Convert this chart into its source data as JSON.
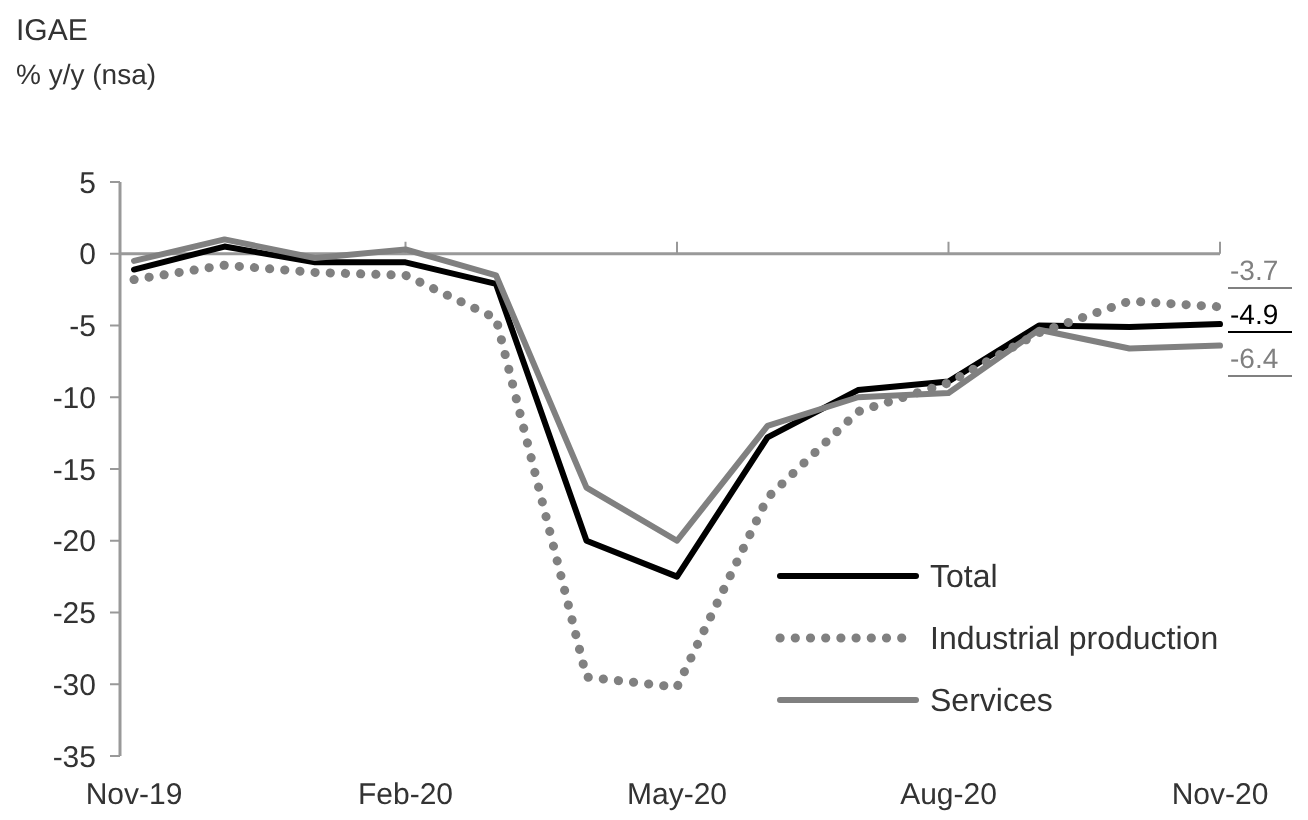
{
  "chart_data": {
    "type": "line",
    "title": "IGAE",
    "subtitle": "% y/y (nsa)",
    "categories": [
      "Nov-19",
      null,
      null,
      "Feb-20",
      null,
      null,
      "May-20",
      null,
      null,
      "Aug-20",
      null,
      null,
      "Nov-20"
    ],
    "series": [
      {
        "name": "Total",
        "color": "#000000",
        "line_style": "solid",
        "values": [
          -1.1,
          0.5,
          -0.6,
          -0.6,
          -2.1,
          -20,
          -22.5,
          -12.8,
          -9.5,
          -8.9,
          -5.0,
          -5.1,
          -4.9
        ],
        "value_labels": [
          null,
          null,
          null,
          null,
          null,
          null,
          null,
          null,
          null,
          null,
          null,
          null,
          "-4.9"
        ]
      },
      {
        "name": "Industrial production",
        "color": "#808080",
        "line_style": "dotted",
        "values": [
          -1.8,
          -0.8,
          -1.3,
          -1.5,
          -4.5,
          -29.5,
          -30.2,
          -17,
          -11,
          -9,
          -5.5,
          -3.3,
          -3.7
        ],
        "value_labels": [
          null,
          null,
          null,
          null,
          null,
          null,
          null,
          null,
          null,
          null,
          null,
          null,
          "-3.7"
        ]
      },
      {
        "name": "Services",
        "color": "#808080",
        "line_style": "solid",
        "values": [
          -0.5,
          1.0,
          -0.3,
          0.3,
          -1.5,
          -16.3,
          -20,
          -12,
          -10,
          -9.7,
          -5.3,
          -6.6,
          -6.4
        ],
        "value_labels": [
          null,
          null,
          null,
          null,
          null,
          null,
          null,
          null,
          null,
          null,
          null,
          null,
          "-6.4"
        ]
      }
    ],
    "ylim": [
      -35,
      5
    ],
    "yticks": [
      -35,
      -30,
      -25,
      -20,
      -15,
      -10,
      -5,
      0,
      5
    ],
    "legend": "bottom right",
    "marker": "none"
  }
}
